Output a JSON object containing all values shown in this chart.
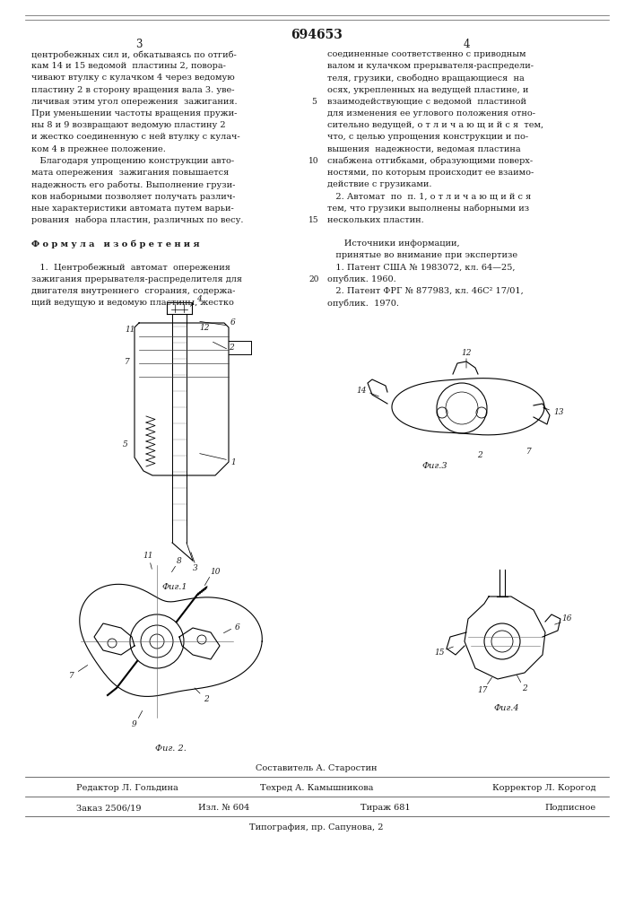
{
  "patent_number": "694653",
  "page_left": "3",
  "page_right": "4",
  "bg_color": "#ffffff",
  "text_color": "#1a1a1a",
  "col_left_lines": [
    "центробежных сил и, обкатываясь по отгиб-",
    "кам 14 и 15 ведомой  пластины 2, повора-",
    "чивают втулку с кулачком 4 через ведомую",
    "пластину 2 в сторону вращения вала 3. уве-",
    "личивая этим угол опережения  зажигания.",
    "При уменьшении частоты вращения пружи-",
    "ны 8 и 9 возвращают ведомую пластину 2",
    "и жестко соединенную с ней втулку с кулач-",
    "ком 4 в прежнее положение.",
    "   Благодаря упрощению конструкции авто-",
    "мата опережения  зажигания повышается",
    "надежность его работы. Выполнение грузи-",
    "ков наборными позволяет получать различ-",
    "ные характеристики автомата путем варьи-",
    "рования  набора пластин, различных по весу.",
    "",
    "Ф о р м у л а   и з о б р е т е н и я",
    "",
    "   1.  Центробежный  автомат  опережения",
    "зажигания прерывателя-распределителя для",
    "двигателя внутреннего  сгорания, содержа-",
    "щий ведущую и ведомую пластины, жестко"
  ],
  "col_right_lines": [
    "соединенные соответственно с приводным",
    "валом и кулачком прерывателя-распредели-",
    "теля, грузики, свободно вращающиеся  на",
    "осях, укрепленных на ведущей пластине, и",
    "взаимодействующие с ведомой  пластиной",
    "для изменения ее углового положения отно-",
    "сительно ведущей, о т л и ч а ю щ и й с я  тем,",
    "что, с целью упрощения конструкции и по-",
    "вышения  надежности, ведомая пластина",
    "снабжена отгибками, образующими поверх-",
    "ностями, по которым происходит ее взаимо-",
    "действие с грузиками.",
    "   2. Автомат  по  п. 1, о т л и ч а ю щ и й с я",
    "тем, что грузики выполнены наборными из",
    "нескольких пластин.",
    "",
    "      Источники информации,",
    "   принятые во внимание при экспертизе",
    "   1. Патент США № 1983072, кл. 64—25,",
    "опублик. 1960.",
    "   2. Патент ФРГ № 877983, кл. 46С² 17/01,",
    "опублик.  1970."
  ],
  "line_nums": {
    "5": 5,
    "10": 10,
    "15": 15,
    "20": 20
  },
  "footer_sestavitel": "Составитель А. Старостин",
  "footer_redaktor": "Редактор Л. Гольдина",
  "footer_tehred": "Техред А. Камышникова",
  "footer_korrektor": "Корректор Л. Корогод",
  "footer_zakaz": "Заказ 2506/19",
  "footer_izl": "Изл. № 604",
  "footer_tirazh": "Тираж 681",
  "footer_podpisnoe": "Подписное",
  "footer_tipografia": "Типография, пр. Сапунова, 2",
  "fig1_label": "Фиг.1",
  "fig2_label": "Фиг. 2.",
  "fig3_label": "Фиг.3",
  "fig4_label": "Фиг.4"
}
